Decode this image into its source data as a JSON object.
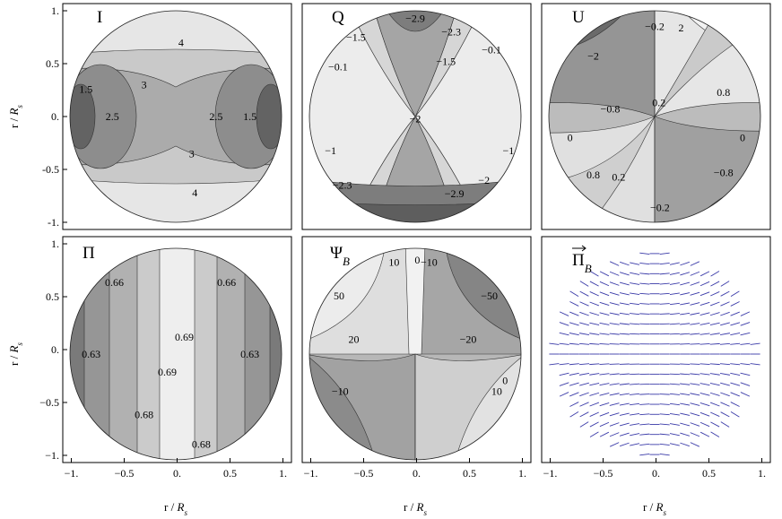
{
  "chart_data": [
    {
      "type": "contour",
      "title": "I",
      "xlim": [
        -1,
        1
      ],
      "ylim": [
        -1,
        1
      ],
      "xticks": [],
      "yticks": [
        "1.",
        "0.5",
        "0.",
        "-0.5",
        "-1."
      ],
      "ylabel": "r / R_s",
      "xlabel": "",
      "contour_labels": [
        {
          "text": "4",
          "x": 0.05,
          "y": 0.7
        },
        {
          "text": "3",
          "x": -0.3,
          "y": 0.3
        },
        {
          "text": "1.5",
          "x": -0.85,
          "y": 0.26
        },
        {
          "text": "2.5",
          "x": -0.6,
          "y": 0.0
        },
        {
          "text": "2.5",
          "x": 0.38,
          "y": 0.0
        },
        {
          "text": "1.5",
          "x": 0.7,
          "y": 0.0
        },
        {
          "text": "3",
          "x": 0.15,
          "y": -0.35
        },
        {
          "text": "4",
          "x": 0.18,
          "y": -0.72
        }
      ]
    },
    {
      "type": "contour",
      "title": "Q",
      "xlim": [
        -1,
        1
      ],
      "ylim": [
        -1,
        1
      ],
      "xticks": [],
      "yticks": [],
      "contour_labels": [
        {
          "text": "−1.5",
          "x": -0.56,
          "y": 0.75
        },
        {
          "text": "−2.9",
          "x": 0.0,
          "y": 0.93
        },
        {
          "text": "−2.3",
          "x": 0.34,
          "y": 0.8
        },
        {
          "text": "−0.1",
          "x": 0.72,
          "y": 0.63
        },
        {
          "text": "−0.1",
          "x": -0.73,
          "y": 0.47
        },
        {
          "text": "−1.5",
          "x": 0.29,
          "y": 0.52
        },
        {
          "text": "−2",
          "x": 0.0,
          "y": -0.02
        },
        {
          "text": "−1",
          "x": -0.8,
          "y": -0.32
        },
        {
          "text": "−1",
          "x": 0.88,
          "y": -0.32
        },
        {
          "text": "−2.3",
          "x": -0.69,
          "y": -0.65
        },
        {
          "text": "−2",
          "x": 0.65,
          "y": -0.6
        },
        {
          "text": "−2.9",
          "x": 0.37,
          "y": -0.73
        }
      ]
    },
    {
      "type": "contour",
      "title": "U",
      "xlim": [
        -1,
        1
      ],
      "ylim": [
        -1,
        1
      ],
      "xticks": [],
      "yticks": [],
      "contour_labels": [
        {
          "text": "−0.2",
          "x": 0.0,
          "y": 0.85
        },
        {
          "text": "2",
          "x": 0.25,
          "y": 0.84
        },
        {
          "text": "−2",
          "x": -0.58,
          "y": 0.57
        },
        {
          "text": "0.8",
          "x": 0.65,
          "y": 0.23
        },
        {
          "text": "−0.8",
          "x": -0.42,
          "y": 0.07
        },
        {
          "text": "0.2",
          "x": 0.04,
          "y": 0.13
        },
        {
          "text": "0",
          "x": -0.8,
          "y": -0.2
        },
        {
          "text": "0",
          "x": 0.83,
          "y": -0.2
        },
        {
          "text": "0.8",
          "x": -0.58,
          "y": -0.55
        },
        {
          "text": "0.2",
          "x": -0.34,
          "y": -0.57
        },
        {
          "text": "−0.8",
          "x": 0.65,
          "y": -0.53
        },
        {
          "text": "−0.2",
          "x": 0.05,
          "y": -0.86
        }
      ]
    },
    {
      "type": "contour",
      "title": "Π",
      "xlim": [
        -1,
        1
      ],
      "ylim": [
        -1,
        1
      ],
      "xticks": [
        "−1.",
        "−0.5",
        "0.",
        "0.5",
        "1."
      ],
      "yticks": [
        "1.",
        "0.5",
        "0.",
        "−0.5",
        "−1."
      ],
      "xlabel": "r / R_s",
      "ylabel": "r / R_s",
      "contour_labels": [
        {
          "text": "0.66",
          "x": -0.58,
          "y": 0.68
        },
        {
          "text": "0.66",
          "x": 0.48,
          "y": 0.68
        },
        {
          "text": "0.69",
          "x": 0.08,
          "y": 0.16
        },
        {
          "text": "0.63",
          "x": -0.8,
          "y": 0.0
        },
        {
          "text": "0.63",
          "x": 0.7,
          "y": 0.0
        },
        {
          "text": "0.69",
          "x": -0.08,
          "y": -0.17
        },
        {
          "text": "0.68",
          "x": -0.3,
          "y": -0.57
        },
        {
          "text": "0.68",
          "x": 0.24,
          "y": -0.85
        }
      ]
    },
    {
      "type": "contour",
      "title": "Ψ_B",
      "xlim": [
        -1,
        1
      ],
      "ylim": [
        -1,
        1
      ],
      "xticks": [
        "−1.",
        "−0.5",
        "0.",
        "0.5",
        "1."
      ],
      "yticks": [],
      "xlabel": "r / R_s",
      "contour_labels": [
        {
          "text": "10",
          "x": -0.2,
          "y": 0.87
        },
        {
          "text": "0",
          "x": 0.02,
          "y": 0.89
        },
        {
          "text": "−10",
          "x": 0.13,
          "y": 0.87
        },
        {
          "text": "50",
          "x": -0.72,
          "y": 0.55
        },
        {
          "text": "−50",
          "x": 0.7,
          "y": 0.55
        },
        {
          "text": "20",
          "x": -0.58,
          "y": 0.14
        },
        {
          "text": "−20",
          "x": 0.5,
          "y": 0.14
        },
        {
          "text": "0",
          "x": 0.85,
          "y": -0.25
        },
        {
          "text": "−10",
          "x": -0.71,
          "y": -0.35
        },
        {
          "text": "10",
          "x": 0.77,
          "y": -0.35
        }
      ]
    },
    {
      "type": "vector_field",
      "title": "Π_B (vector)",
      "xlim": [
        -1,
        1
      ],
      "ylim": [
        -1,
        1
      ],
      "xticks": [
        "−1.",
        "−0.5",
        "0.",
        "0.5",
        "1."
      ],
      "yticks": [],
      "xlabel": "r / R_s",
      "color": "#3a3aa8"
    }
  ]
}
